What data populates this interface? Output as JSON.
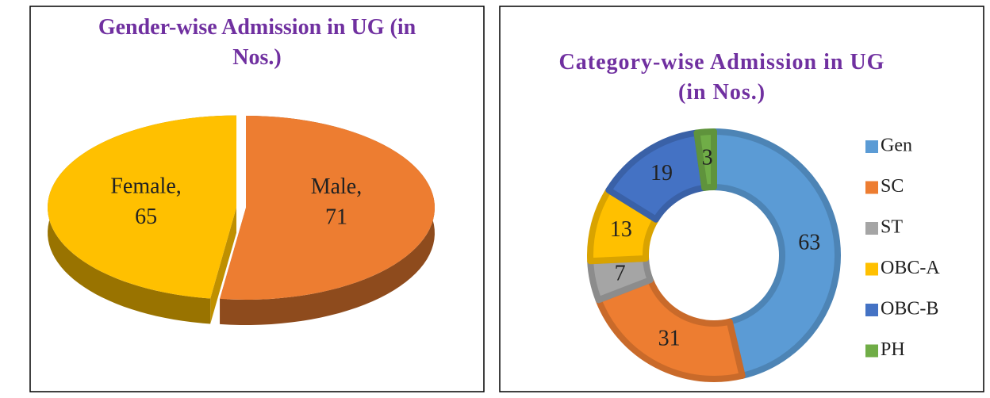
{
  "chart_data": [
    {
      "type": "pie3d",
      "title": "Gender-wise Admission in UG (in Nos.)",
      "categories": [
        "Male",
        "Female"
      ],
      "values": [
        71,
        65
      ],
      "colors": [
        "#ed7d31",
        "#ffc000"
      ],
      "label_separator": ","
    },
    {
      "type": "donut",
      "title": "Category-wise Admission in UG (in Nos.)",
      "categories": [
        "Gen",
        "SC",
        "ST",
        "OBC-A",
        "OBC-B",
        "PH"
      ],
      "values": [
        63,
        31,
        7,
        13,
        19,
        3
      ],
      "colors": [
        "#5b9bd5",
        "#ed7d31",
        "#a5a5a5",
        "#ffc000",
        "#4472c4",
        "#70ad47"
      ],
      "legend": "right"
    }
  ]
}
